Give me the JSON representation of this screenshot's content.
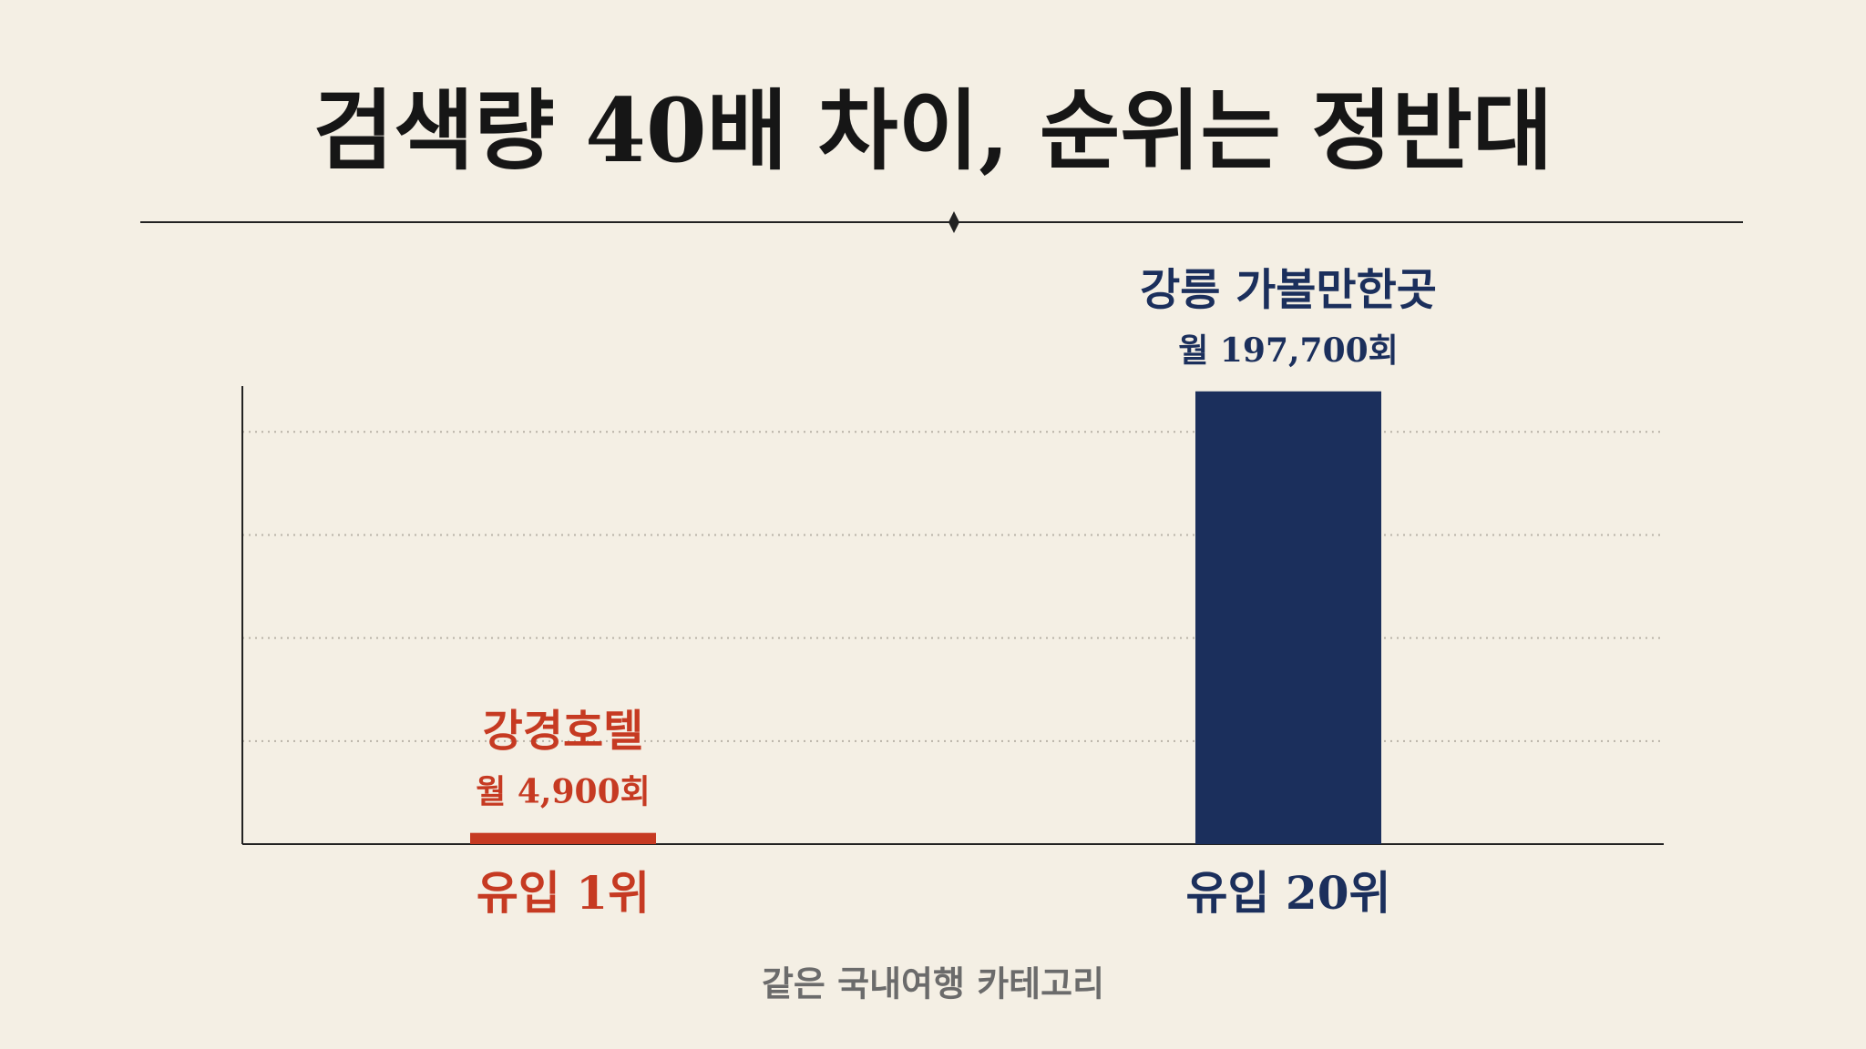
{
  "chart_data": {
    "type": "bar",
    "title": "검색량 40배 차이, 순위는 정반대",
    "categories": [
      "유입 1위",
      "유입 20위"
    ],
    "bar_labels": [
      "강경호텔",
      "강릉 가볼만한곳"
    ],
    "values": [
      4900,
      197700
    ],
    "value_labels": [
      "월 4,900회",
      "월 197,700회"
    ],
    "colors": [
      "#c63a22",
      "#1b2f5c"
    ],
    "ylim": [
      0,
      200000
    ],
    "yticks": [
      45000,
      90000,
      135000,
      180000
    ],
    "grid": true,
    "footnote": "같은 국내여행 카테고리"
  }
}
